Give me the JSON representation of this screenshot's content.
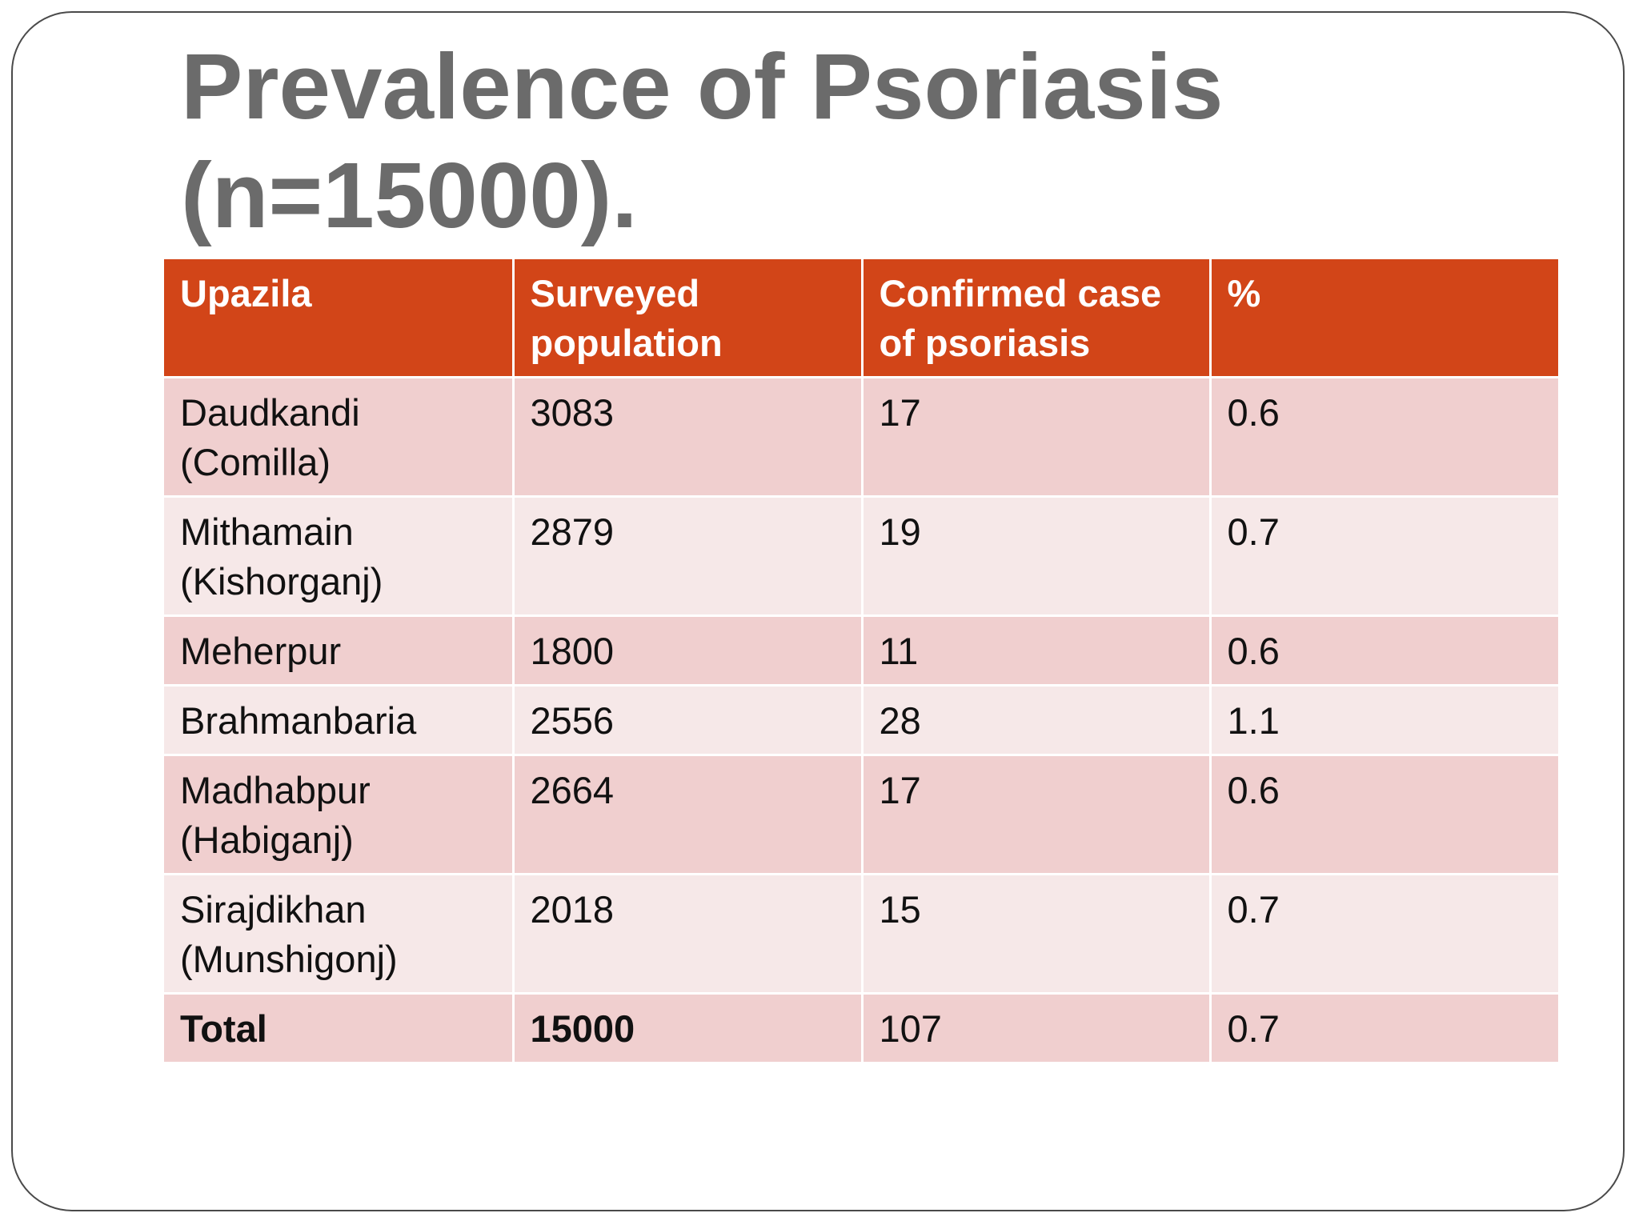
{
  "slide": {
    "title_line1": "Prevalence of Psoriasis",
    "title_line2": "(n=15000)."
  },
  "table": {
    "headers": [
      "Upazila",
      "Surveyed population",
      "Confirmed case of psoriasis",
      "%"
    ],
    "rows": [
      {
        "upazila": "Daudkandi (Comilla)",
        "surveyed": "3083",
        "confirmed": "17",
        "percent": "0.6"
      },
      {
        "upazila": "Mithamain (Kishorganj)",
        "surveyed": "2879",
        "confirmed": "19",
        "percent": "0.7"
      },
      {
        "upazila": "Meherpur",
        "surveyed": "1800",
        "confirmed": "11",
        "percent": "0.6"
      },
      {
        "upazila": "Brahmanbaria",
        "surveyed": "2556",
        "confirmed": "28",
        "percent": "1.1"
      },
      {
        "upazila": "Madhabpur (Habiganj)",
        "surveyed": "2664",
        "confirmed": "17",
        "percent": "0.6"
      },
      {
        "upazila": "Sirajdikhan (Munshigonj)",
        "surveyed": "2018",
        "confirmed": "15",
        "percent": "0.7"
      }
    ],
    "total": {
      "upazila": "Total",
      "surveyed": "15000",
      "confirmed": "107",
      "percent": "0.7"
    }
  },
  "colors": {
    "header_bg": "#d24518",
    "row_dark": "#f0cfcf",
    "row_light": "#f6e8e8",
    "title_text": "#6b6b6b"
  }
}
